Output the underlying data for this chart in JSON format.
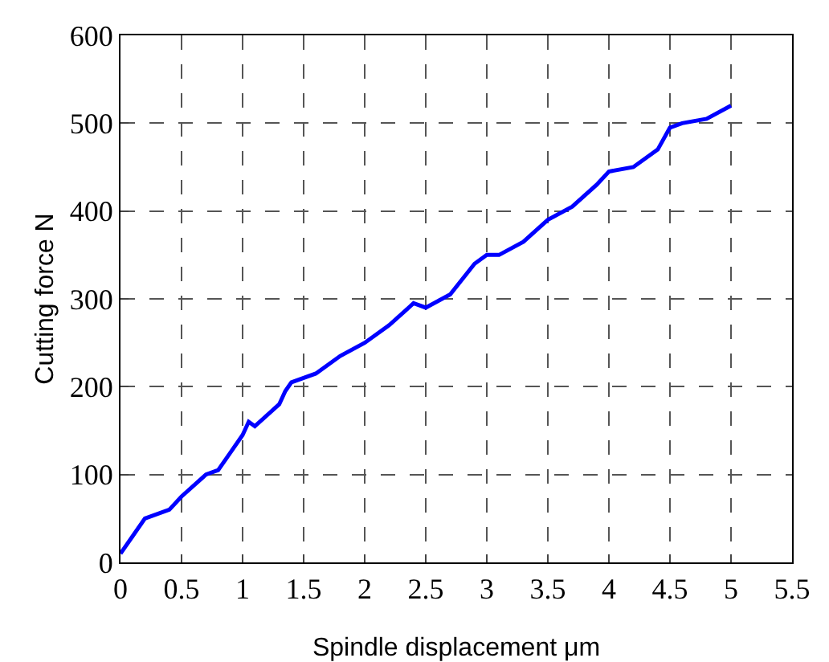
{
  "chart_data": {
    "type": "line",
    "xlabel": "Spindle displacement μm",
    "ylabel": "Cutting force N",
    "xlim": [
      0,
      5.5
    ],
    "xticks": [
      0,
      0.5,
      1,
      1.5,
      2,
      2.5,
      3,
      3.5,
      4,
      4.5,
      5,
      5.5
    ],
    "ylim": [
      0,
      600
    ],
    "yticks": [
      0,
      100,
      200,
      300,
      400,
      500,
      600
    ],
    "grid": true,
    "line_style": "solid",
    "series": [
      {
        "color": "#0000ff",
        "x": [
          0,
          0.1,
          0.2,
          0.4,
          0.5,
          0.7,
          0.8,
          0.9,
          1.0,
          1.05,
          1.1,
          1.3,
          1.35,
          1.4,
          1.6,
          1.8,
          2.0,
          2.2,
          2.4,
          2.5,
          2.7,
          2.9,
          3.0,
          3.1,
          3.3,
          3.5,
          3.7,
          3.9,
          4.0,
          4.2,
          4.4,
          4.5,
          4.6,
          4.8,
          5.0
        ],
        "values": [
          10,
          30,
          50,
          60,
          75,
          100,
          105,
          125,
          145,
          160,
          155,
          180,
          195,
          205,
          215,
          235,
          250,
          270,
          295,
          290,
          305,
          340,
          350,
          350,
          365,
          390,
          405,
          430,
          445,
          450,
          470,
          495,
          500,
          505,
          520
        ]
      }
    ]
  }
}
